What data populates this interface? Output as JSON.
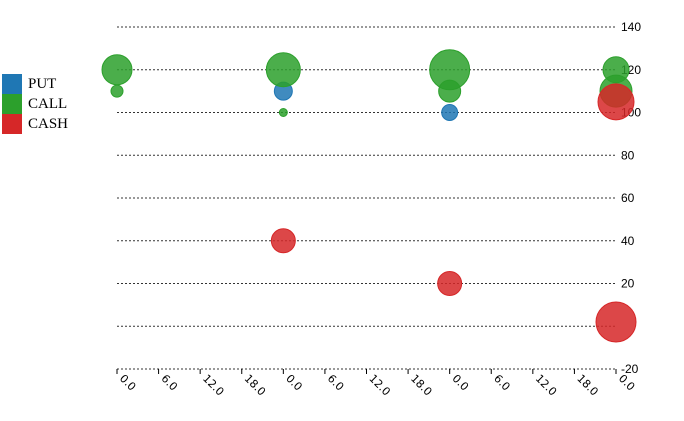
{
  "chart_data": {
    "type": "scatter",
    "title": "",
    "xlabel": "",
    "ylabel": "",
    "ylim": [
      -20,
      140
    ],
    "y_ticks": [
      140,
      120,
      100,
      80,
      60,
      40,
      20,
      0,
      -20
    ],
    "y_tick_labels": [
      "140",
      "120",
      "100",
      "80",
      "60",
      "40",
      "20",
      "",
      "-20"
    ],
    "x_ticks_hours": [
      0,
      6,
      12,
      18,
      24,
      30,
      36,
      42,
      48,
      54,
      60,
      66,
      72
    ],
    "x_tick_labels": [
      "0.0",
      "6.0",
      "12.0",
      "18.0",
      "0.0",
      "6.0",
      "12.0",
      "18.0",
      "0.0",
      "6.0",
      "12.0",
      "18.0",
      "0.0"
    ],
    "xlim_hours": [
      0,
      72
    ],
    "grid": true,
    "legend_position": "left",
    "series": [
      {
        "name": "PUT",
        "color": "#1f77b4",
        "points": [
          {
            "x": 24,
            "y": 110,
            "size": 9
          },
          {
            "x": 48,
            "y": 100,
            "size": 8
          }
        ]
      },
      {
        "name": "CALL",
        "color": "#2ca02c",
        "points": [
          {
            "x": 0,
            "y": 120,
            "size": 15
          },
          {
            "x": 0,
            "y": 110,
            "size": 6
          },
          {
            "x": 24,
            "y": 120,
            "size": 17
          },
          {
            "x": 24,
            "y": 100,
            "size": 4
          },
          {
            "x": 48,
            "y": 120,
            "size": 20
          },
          {
            "x": 48,
            "y": 110,
            "size": 11
          },
          {
            "x": 72,
            "y": 120,
            "size": 13
          },
          {
            "x": 72,
            "y": 110,
            "size": 16
          }
        ]
      },
      {
        "name": "CASH",
        "color": "#d62728",
        "points": [
          {
            "x": 24,
            "y": 40,
            "size": 12
          },
          {
            "x": 48,
            "y": 20,
            "size": 12
          },
          {
            "x": 72,
            "y": 105,
            "size": 18
          },
          {
            "x": 72,
            "y": 2,
            "size": 20
          }
        ]
      }
    ]
  }
}
